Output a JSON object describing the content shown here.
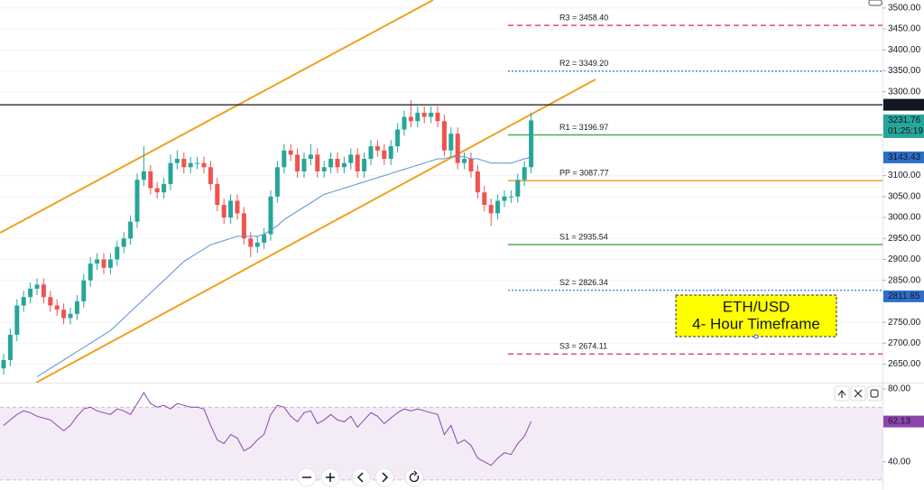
{
  "chart_data": [
    {
      "type": "candlestick",
      "ylim": [
        2606,
        3519
      ],
      "yticks": [
        {
          "value": 2650,
          "label": "2650.00"
        },
        {
          "value": 2700,
          "label": "2700.00"
        },
        {
          "value": 2750,
          "label": "2750.00"
        },
        {
          "value": 2850,
          "label": "2850.00"
        },
        {
          "value": 2900,
          "label": "2900.00"
        },
        {
          "value": 2950,
          "label": "2950.00"
        },
        {
          "value": 3000,
          "label": "3000.00"
        },
        {
          "value": 3050,
          "label": "3050.00"
        },
        {
          "value": 3100,
          "label": "3100.00"
        },
        {
          "value": 3300,
          "label": "3300.00"
        },
        {
          "value": 3350,
          "label": "3350.00"
        },
        {
          "value": 3400,
          "label": "3400.00"
        },
        {
          "value": 3450,
          "label": "3450.00"
        },
        {
          "value": 3500,
          "label": "3500.00"
        }
      ],
      "grid": true,
      "up_color": "#26a69a",
      "down_color": "#ef5350",
      "open": [
        2640,
        2660,
        2720,
        2790,
        2810,
        2830,
        2840,
        2810,
        2790,
        2780,
        2760,
        2770,
        2800,
        2850,
        2890,
        2900,
        2880,
        2900,
        2930,
        2950,
        2990,
        3090,
        3110,
        3070,
        3060,
        3080,
        3130,
        3140,
        3120,
        3130,
        3130,
        3120,
        3080,
        3030,
        3000,
        3040,
        3010,
        2950,
        2930,
        2940,
        2960,
        3050,
        3120,
        3160,
        3150,
        3110,
        3140,
        3150,
        3110,
        3120,
        3140,
        3120,
        3130,
        3150,
        3110,
        3140,
        3170,
        3160,
        3140,
        3170,
        3210,
        3240,
        3230,
        3250,
        3240,
        3250,
        3230,
        3160,
        3200,
        3130,
        3140,
        3110,
        3060,
        3030,
        3010,
        3040,
        3050,
        3050,
        3090,
        3120
      ],
      "high": [
        2675,
        2735,
        2805,
        2825,
        2845,
        2855,
        2855,
        2825,
        2805,
        2795,
        2785,
        2815,
        2865,
        2905,
        2915,
        2915,
        2915,
        2945,
        2965,
        3005,
        3105,
        3170,
        3125,
        3085,
        3095,
        3150,
        3160,
        3155,
        3145,
        3145,
        3145,
        3135,
        3095,
        3045,
        3055,
        3055,
        3025,
        2965,
        2955,
        2975,
        3065,
        3135,
        3175,
        3175,
        3165,
        3155,
        3175,
        3165,
        3135,
        3155,
        3155,
        3145,
        3165,
        3165,
        3155,
        3185,
        3185,
        3175,
        3185,
        3225,
        3255,
        3280,
        3265,
        3265,
        3265,
        3265,
        3245,
        3215,
        3215,
        3155,
        3155,
        3125,
        3075,
        3045,
        3055,
        3065,
        3065,
        3105,
        3135,
        3250
      ],
      "low": [
        2625,
        2645,
        2705,
        2775,
        2795,
        2815,
        2795,
        2775,
        2765,
        2745,
        2745,
        2755,
        2785,
        2835,
        2875,
        2865,
        2865,
        2885,
        2915,
        2935,
        2975,
        3075,
        3055,
        3045,
        3045,
        3065,
        3115,
        3105,
        3105,
        3115,
        3105,
        3065,
        3015,
        2985,
        2985,
        2995,
        2935,
        2905,
        2915,
        2925,
        2945,
        3035,
        3105,
        3135,
        3095,
        3095,
        3125,
        3095,
        3095,
        3105,
        3105,
        3105,
        3115,
        3095,
        3095,
        3125,
        3145,
        3125,
        3125,
        3155,
        3195,
        3215,
        3215,
        3225,
        3225,
        3215,
        3145,
        3145,
        3115,
        3115,
        3095,
        3045,
        3015,
        2980,
        2995,
        3025,
        3035,
        3035,
        3075,
        3105
      ],
      "close": [
        2660,
        2720,
        2790,
        2810,
        2830,
        2840,
        2810,
        2790,
        2780,
        2760,
        2770,
        2800,
        2850,
        2890,
        2900,
        2880,
        2900,
        2930,
        2950,
        2990,
        3090,
        3110,
        3070,
        3060,
        3080,
        3130,
        3140,
        3120,
        3130,
        3130,
        3120,
        3080,
        3030,
        3000,
        3040,
        3010,
        2950,
        2930,
        2940,
        2960,
        3050,
        3120,
        3160,
        3150,
        3110,
        3140,
        3150,
        3110,
        3120,
        3140,
        3120,
        3130,
        3150,
        3110,
        3140,
        3170,
        3160,
        3140,
        3170,
        3210,
        3240,
        3230,
        3250,
        3240,
        3250,
        3230,
        3160,
        3200,
        3130,
        3140,
        3110,
        3060,
        3030,
        3010,
        3040,
        3050,
        3050,
        3090,
        3120,
        3231.76
      ],
      "ma": {
        "color": "#5b8fd6",
        "values": [
          null,
          null,
          null,
          null,
          null,
          2620,
          2630,
          2640,
          2650,
          2660,
          2670,
          2680,
          2690,
          2700,
          2710,
          2720,
          2730,
          2745,
          2760,
          2775,
          2790,
          2805,
          2820,
          2835,
          2850,
          2865,
          2880,
          2895,
          2905,
          2915,
          2925,
          2935,
          2940,
          2945,
          2950,
          2955,
          2955,
          2955,
          2955,
          2960,
          2970,
          2980,
          2995,
          3005,
          3015,
          3025,
          3035,
          3045,
          3055,
          3060,
          3065,
          3070,
          3075,
          3080,
          3085,
          3090,
          3095,
          3100,
          3105,
          3110,
          3115,
          3120,
          3125,
          3130,
          3135,
          3140,
          3140,
          3145,
          3145,
          3145,
          3140,
          3140,
          3135,
          3130,
          3130,
          3130,
          3130,
          3135,
          3140,
          3143.43
        ]
      },
      "pivots": [
        {
          "label": "R3 = 3458.40",
          "value": 3458.4,
          "color": "#e0457b",
          "style": "dashed"
        },
        {
          "label": "R2 = 3349.20",
          "value": 3349.2,
          "color": "#4a90e2",
          "style": "dotted"
        },
        {
          "label": "R1 = 3196.97",
          "value": 3196.97,
          "color": "#4caf50",
          "style": "solid"
        },
        {
          "label": "PP = 3087.77",
          "value": 3087.77,
          "color": "#f0a030",
          "style": "solid"
        },
        {
          "label": "S1 = 2935.54",
          "value": 2935.54,
          "color": "#4caf50",
          "style": "solid"
        },
        {
          "label": "S2 = 2826.34",
          "value": 2826.34,
          "color": "#4a90e2",
          "style": "dotted"
        },
        {
          "label": "S3 = 2674.11",
          "value": 2674.11,
          "color": "#e0457b",
          "style": "dashed"
        }
      ],
      "price_labels": [
        {
          "value": 3269.01,
          "color": "#131722",
          "line": true
        },
        {
          "value": 3231.76,
          "color": "#26a69a",
          "countdown": "01:25:19"
        },
        {
          "value": 3143.43,
          "color": "#2f6fc9"
        },
        {
          "value": 2811.85,
          "color": "#2f6fc9"
        }
      ],
      "annotation": [
        "ETH/USD",
        "4- Hour Timeframe"
      ]
    },
    {
      "type": "line",
      "color": "#8e44ad",
      "ylim": [
        24.5,
        83.5
      ],
      "yticks": [
        {
          "value": 80,
          "label": "80.00"
        },
        {
          "value": 40,
          "label": "40.00"
        }
      ],
      "band": [
        30,
        70
      ],
      "values": [
        60,
        63,
        66,
        68,
        67,
        65,
        64,
        63,
        60,
        57,
        60,
        65,
        69,
        70,
        68,
        67,
        66,
        69,
        68,
        66,
        72,
        78,
        72,
        70,
        71,
        69,
        72,
        71,
        70,
        70,
        69,
        60,
        52,
        50,
        55,
        53,
        46,
        48,
        52,
        55,
        66,
        71,
        70,
        65,
        62,
        67,
        68,
        61,
        63,
        66,
        63,
        62,
        65,
        59,
        63,
        67,
        65,
        61,
        64,
        67,
        69,
        68,
        69,
        68,
        67,
        66,
        55,
        60,
        50,
        52,
        49,
        42,
        40,
        38,
        42,
        45,
        44,
        50,
        54,
        62.13
      ]
    }
  ]
}
